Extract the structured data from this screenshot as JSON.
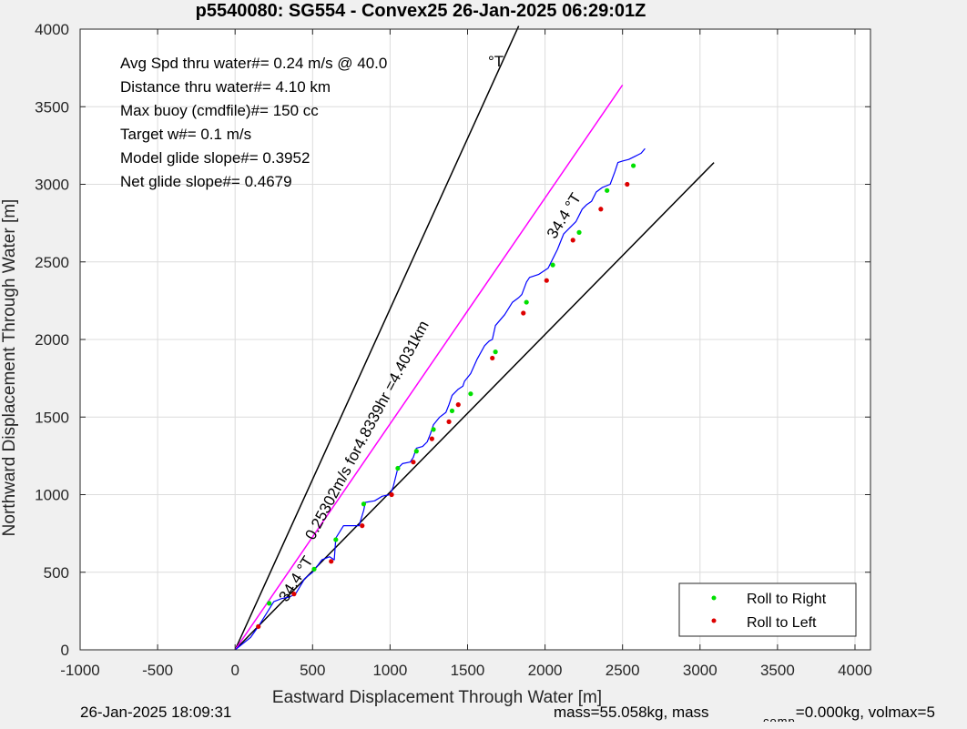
{
  "chart_data": {
    "type": "line",
    "title": "p5540080: SG554 - Convex25 26-Jan-2025 06:29:01Z",
    "xlabel": "Eastward Displacement Through Water [m]",
    "ylabel": "Northward Displacement Through Water [m]",
    "xlim": [
      -1000,
      4100
    ],
    "ylim": [
      0,
      4000
    ],
    "xticks": [
      -1000,
      -500,
      0,
      500,
      1000,
      1500,
      2000,
      2500,
      3000,
      3500,
      4000
    ],
    "yticks": [
      0,
      500,
      1000,
      1500,
      2000,
      2500,
      3000,
      3500,
      4000
    ],
    "grid": true,
    "info_lines": [
      "Avg Spd thru water#=  0.24 m/s @  40.0",
      "Distance thru water#=  4.10 km",
      "Max buoy (cmdfile)#= 150 cc",
      "Target w#= 0.1 m/s",
      "Model glide slope#= 0.3952",
      "Net glide slope#= 0.4679"
    ],
    "info_degree_suffix": "°T",
    "annotations": [
      {
        "text": "34.4 °T",
        "x": 2150,
        "y": 2780,
        "angle": -58
      },
      {
        "text": "34.4 °T",
        "x": 420,
        "y": 440,
        "angle": -58
      },
      {
        "text": "0.25302m/s for4.8339hr =4.4031km",
        "x": 880,
        "y": 1400,
        "angle": -62
      }
    ],
    "reference_lines": [
      {
        "name": "left bound",
        "color": "#000000",
        "x": [
          0,
          1830
        ],
        "y": [
          0,
          4020
        ]
      },
      {
        "name": "right bound",
        "color": "#000000",
        "x": [
          0,
          3090
        ],
        "y": [
          0,
          3140
        ]
      },
      {
        "name": "heading",
        "color": "#ff00ff",
        "x": [
          0,
          2500
        ],
        "y": [
          0,
          3640
        ]
      }
    ],
    "series": [
      {
        "color": "#0000ff",
        "x": [
          0,
          100,
          150,
          200,
          250,
          300,
          350,
          390,
          450,
          500,
          560,
          610,
          640,
          650,
          700,
          750,
          800,
          830,
          840,
          900,
          950,
          1000,
          1020,
          1050,
          1080,
          1130,
          1150,
          1170,
          1210,
          1240,
          1260,
          1280,
          1320,
          1360,
          1380,
          1400,
          1440,
          1470,
          1480,
          1520,
          1560,
          1610,
          1640,
          1660,
          1680,
          1740,
          1790,
          1830,
          1850,
          1880,
          1900,
          1960,
          2020,
          2050,
          2080,
          2120,
          2160,
          2200,
          2240,
          2270,
          2300,
          2330,
          2370,
          2420,
          2450,
          2470,
          2500,
          2540,
          2580,
          2600,
          2620,
          2645
        ],
        "y": [
          0,
          80,
          150,
          230,
          310,
          330,
          340,
          360,
          460,
          500,
          580,
          600,
          580,
          720,
          800,
          800,
          800,
          900,
          950,
          960,
          990,
          1000,
          1050,
          1170,
          1200,
          1210,
          1240,
          1300,
          1310,
          1340,
          1390,
          1450,
          1500,
          1530,
          1580,
          1640,
          1680,
          1700,
          1730,
          1780,
          1870,
          1960,
          1990,
          2000,
          2090,
          2160,
          2240,
          2270,
          2290,
          2370,
          2400,
          2420,
          2460,
          2520,
          2580,
          2680,
          2720,
          2760,
          2840,
          2870,
          2890,
          2950,
          2980,
          3000,
          3080,
          3140,
          3150,
          3160,
          3180,
          3190,
          3200,
          3230
        ]
      }
    ],
    "roll_right": {
      "color": "#00e000",
      "x": [
        220,
        510,
        650,
        830,
        1050,
        1170,
        1280,
        1400,
        1520,
        1680,
        1880,
        2050,
        2220,
        2400,
        2570
      ],
      "y": [
        300,
        520,
        710,
        940,
        1170,
        1280,
        1420,
        1540,
        1650,
        1920,
        2240,
        2480,
        2690,
        2960,
        3120
      ]
    },
    "roll_left": {
      "color": "#dd0000",
      "x": [
        150,
        380,
        620,
        820,
        1010,
        1150,
        1270,
        1380,
        1440,
        1660,
        1860,
        2010,
        2180,
        2360,
        2530
      ],
      "y": [
        150,
        360,
        570,
        800,
        1000,
        1210,
        1360,
        1470,
        1580,
        1880,
        2170,
        2380,
        2640,
        2840,
        3000
      ]
    },
    "legend": {
      "position": "bottom-right",
      "entries": [
        "Roll to Right",
        "Roll to Left"
      ]
    }
  },
  "footer": {
    "timestamp": "26-Jan-2025 18:09:31",
    "mass_text": "mass=55.058kg, mass",
    "comp_subscript": "comp",
    "comp_text": "=0.000kg, volmax=5"
  }
}
